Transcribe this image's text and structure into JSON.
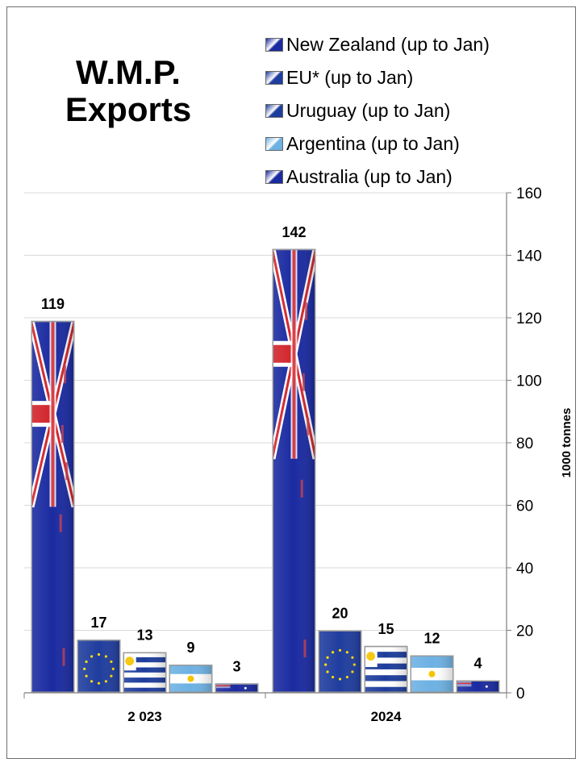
{
  "chart_data": {
    "type": "bar",
    "title_lines": [
      "W.M.P.",
      "Exports"
    ],
    "categories": [
      "2 023",
      "2024"
    ],
    "series": [
      {
        "name": "New Zealand (up to Jan)",
        "values": [
          119,
          142
        ],
        "color": "#1a2aa0"
      },
      {
        "name": "EU* (up to Jan)",
        "values": [
          17,
          20
        ],
        "color": "#1f3d9e"
      },
      {
        "name": "Uruguay (up to Jan)",
        "values": [
          13,
          15
        ],
        "color": "#1d3d9c"
      },
      {
        "name": "Argentina (up to Jan)",
        "values": [
          9,
          12
        ],
        "color": "#6db1e3"
      },
      {
        "name": "Australia (up to Jan)",
        "values": [
          3,
          4
        ],
        "color": "#1a2aa0"
      }
    ],
    "data_labels": [
      [
        "119",
        "17",
        "13",
        "9",
        "3"
      ],
      [
        "142",
        "20",
        "15",
        "12",
        "4"
      ]
    ],
    "ylabel": "1000 tonnes",
    "ylim": [
      0,
      160
    ],
    "yticks": [
      0,
      20,
      40,
      60,
      80,
      100,
      120,
      140,
      160
    ],
    "ytick_labels": [
      "0",
      "20",
      "40",
      "60",
      "80",
      "100",
      "120",
      "140",
      "160"
    ],
    "y_axis_side": "right",
    "grid": true,
    "legend_position": "top-right"
  }
}
